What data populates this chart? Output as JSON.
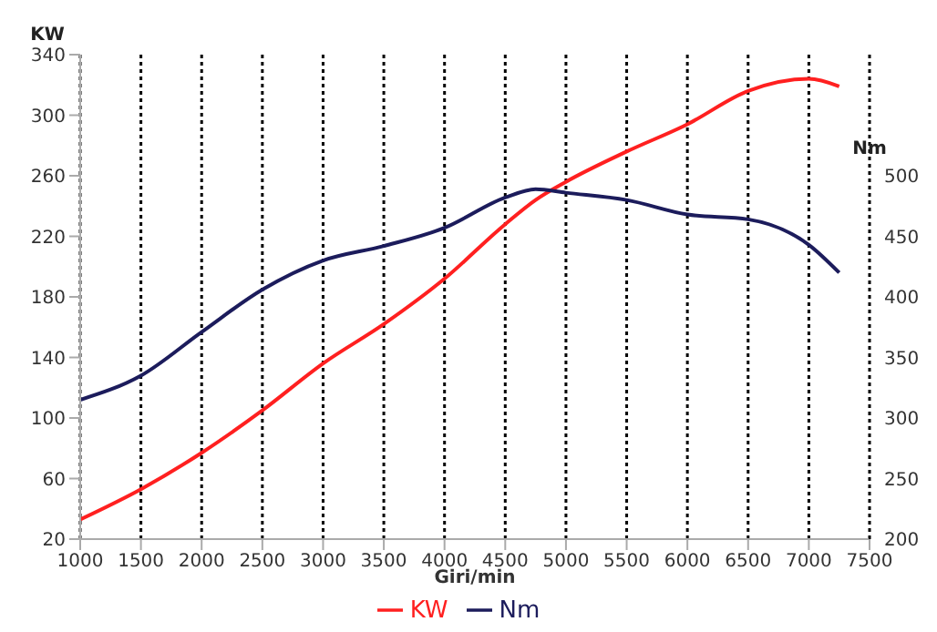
{
  "chart_data": {
    "type": "line",
    "xlabel": "Giri/min",
    "ylabel": "KW",
    "y2label": "Nm",
    "x": [
      1000,
      1500,
      2000,
      2500,
      3000,
      3500,
      4000,
      4500,
      4750,
      5000,
      5500,
      6000,
      6500,
      7000,
      7250
    ],
    "series": [
      {
        "name": "KW",
        "color": "#ff2020",
        "values": [
          33,
          53,
          77,
          105,
          136,
          162,
          192,
          228,
          244,
          256,
          276,
          294,
          316,
          324,
          319
        ]
      },
      {
        "name": "Nm",
        "color": "#1c1c5c",
        "axis": "y2",
        "values": [
          315,
          335,
          371,
          406,
          430,
          442,
          457,
          482,
          489,
          486,
          480,
          468,
          464,
          443,
          420
        ]
      }
    ],
    "xlim": [
      1000,
      7500
    ],
    "xticks": [
      1000,
      1500,
      2000,
      2500,
      3000,
      3500,
      4000,
      4500,
      5000,
      5500,
      6000,
      6500,
      7000,
      7500
    ],
    "ylim": [
      20,
      340
    ],
    "yticks": [
      20,
      60,
      100,
      140,
      180,
      220,
      260,
      300,
      340
    ],
    "y2lim": [
      200,
      600
    ],
    "y2ticks": [
      200,
      250,
      300,
      350,
      400,
      450,
      500
    ],
    "grid": "x",
    "legend": "bottom",
    "marker": "none",
    "line_style": "solid"
  }
}
